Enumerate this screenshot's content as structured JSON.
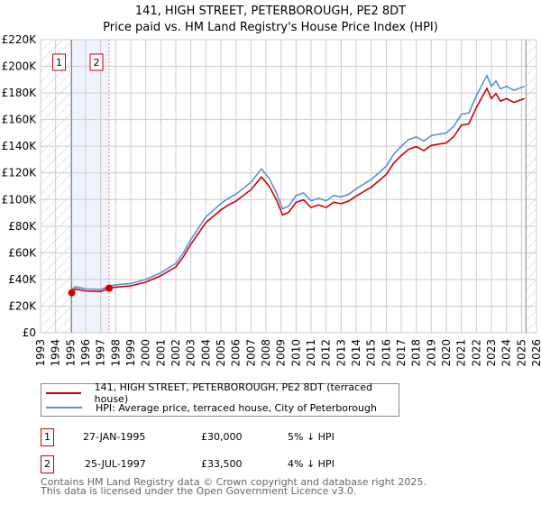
{
  "chart_data": {
    "type": "line",
    "title": "141, HIGH STREET, PETERBOROUGH, PE2 8DT",
    "subtitle": "Price paid vs. HM Land Registry's House Price Index (HPI)",
    "xlim": [
      1993,
      2026
    ],
    "ylim": [
      0,
      220000
    ],
    "y_ticks": [
      0,
      20000,
      40000,
      60000,
      80000,
      100000,
      120000,
      140000,
      160000,
      180000,
      200000,
      220000
    ],
    "y_tick_labels": [
      "£0",
      "£20K",
      "£40K",
      "£60K",
      "£80K",
      "£100K",
      "£120K",
      "£140K",
      "£160K",
      "£180K",
      "£200K",
      "£220K"
    ],
    "x_ticks": [
      1993,
      1994,
      1995,
      1996,
      1997,
      1998,
      1999,
      2000,
      2001,
      2002,
      2003,
      2004,
      2005,
      2006,
      2007,
      2008,
      2009,
      2010,
      2011,
      2012,
      2013,
      2014,
      2015,
      2016,
      2017,
      2018,
      2019,
      2020,
      2021,
      2022,
      2023,
      2024,
      2025,
      2026
    ],
    "grid": true,
    "series": [
      {
        "name": "141, HIGH STREET, PETERBOROUGH, PE2 8DT (terraced house)",
        "color": "#cc0000",
        "x": [
          1995.07,
          1995.3,
          1996,
          1997,
          1997.56,
          1998,
          1999,
          2000,
          2001,
          2002,
          2002.5,
          2003,
          2004,
          2005,
          2005.5,
          2006,
          2007,
          2007.7,
          2008.2,
          2008.7,
          2009.1,
          2009.5,
          2010,
          2010.5,
          2011,
          2011.5,
          2012,
          2012.5,
          2013,
          2013.5,
          2014,
          2015,
          2015.5,
          2016,
          2016.5,
          2017,
          2017.5,
          2018,
          2018.5,
          2019,
          2019.5,
          2020,
          2020.5,
          2021,
          2021.5,
          2022,
          2022.7,
          2023,
          2023.3,
          2023.6,
          2024,
          2024.5,
          2025.2
        ],
        "y": [
          30000,
          32800,
          31400,
          30900,
          33500,
          34200,
          35200,
          38000,
          42800,
          49400,
          57000,
          66500,
          82700,
          92200,
          96000,
          98800,
          107400,
          116900,
          110200,
          99800,
          88400,
          90300,
          97900,
          99800,
          94000,
          96000,
          94000,
          97900,
          96900,
          98800,
          102600,
          109300,
          114000,
          118800,
          127300,
          133000,
          137800,
          139700,
          136800,
          140600,
          141600,
          142500,
          147300,
          155800,
          156800,
          169100,
          183400,
          175800,
          179600,
          173900,
          175800,
          172900,
          175800
        ]
      },
      {
        "name": "HPI: Average price, terraced house, City of Peterborough",
        "color": "#5b8fd4",
        "x": [
          1995.0,
          1995.3,
          1996,
          1997,
          1997.6,
          1998,
          1999,
          2000,
          2001,
          2002,
          2002.5,
          2003,
          2004,
          2005,
          2005.5,
          2006,
          2007,
          2007.7,
          2008.2,
          2008.7,
          2009.1,
          2009.5,
          2010,
          2010.5,
          2011,
          2011.5,
          2012,
          2012.5,
          2013,
          2013.5,
          2014,
          2015,
          2015.5,
          2016,
          2016.5,
          2017,
          2017.5,
          2018,
          2018.5,
          2019,
          2019.5,
          2020,
          2020.5,
          2021,
          2021.5,
          2022,
          2022.7,
          2023,
          2023.3,
          2023.6,
          2024,
          2024.5,
          2025.2
        ],
        "y": [
          31500,
          34500,
          33000,
          32500,
          35000,
          36000,
          37000,
          40000,
          45000,
          52000,
          60000,
          70000,
          87000,
          97000,
          101000,
          104000,
          113000,
          123000,
          116000,
          105000,
          93000,
          95000,
          103000,
          105000,
          99000,
          101000,
          99000,
          103000,
          102000,
          104000,
          108000,
          115000,
          120000,
          125000,
          134000,
          140000,
          145000,
          147000,
          144000,
          148000,
          149000,
          150000,
          155000,
          164000,
          165000,
          178000,
          193000,
          185000,
          189000,
          183000,
          185000,
          182000,
          185000
        ]
      }
    ],
    "sales": [
      {
        "label": "1",
        "x": 1995.07,
        "date": "27-JAN-1995",
        "price": "£30,000",
        "value": 30000,
        "hpi_diff": "5% ↓ HPI"
      },
      {
        "label": "2",
        "x": 1997.56,
        "date": "25-JUL-1997",
        "price": "£33,500",
        "value": 33500,
        "hpi_diff": "4% ↓ HPI"
      }
    ],
    "data_end_year": 2025.3,
    "legend_placement": "below"
  },
  "legend": {
    "red_label": "141, HIGH STREET, PETERBOROUGH, PE2 8DT (terraced house)",
    "blue_label": "HPI: Average price, terraced house, City of Peterborough"
  },
  "footer": {
    "line1": "Contains HM Land Registry data © Crown copyright and database right 2025.",
    "line2": "This data is licensed under the Open Government Licence v3.0."
  }
}
